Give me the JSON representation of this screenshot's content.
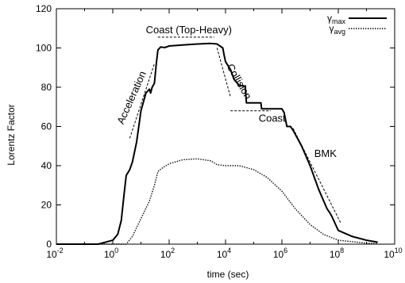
{
  "chart_data": {
    "type": "line",
    "xlabel": "time (sec)",
    "ylabel": "Lorentz Factor",
    "xscale": "log",
    "xlim": [
      0.01,
      10000000000
    ],
    "ylim": [
      0,
      120
    ],
    "x_ticks": [
      {
        "value": 0.01,
        "base": "10",
        "exp": "-2"
      },
      {
        "value": 1,
        "base": "10",
        "exp": "0"
      },
      {
        "value": 100,
        "base": "10",
        "exp": "2"
      },
      {
        "value": 10000,
        "base": "10",
        "exp": "4"
      },
      {
        "value": 1000000,
        "base": "10",
        "exp": "6"
      },
      {
        "value": 100000000,
        "base": "10",
        "exp": "8"
      },
      {
        "value": 10000000000,
        "base": "10",
        "exp": "10"
      }
    ],
    "y_ticks": [
      "0",
      "20",
      "40",
      "60",
      "80",
      "100",
      "120"
    ],
    "grid": false,
    "legend_position": "top-right",
    "series": [
      {
        "name": "γmax",
        "legend_base": "γ",
        "legend_sub": "max",
        "style": "solid",
        "color": "#000000",
        "points": [
          [
            0.01,
            0
          ],
          [
            0.3,
            0
          ],
          [
            1.0,
            2
          ],
          [
            1.5,
            5
          ],
          [
            2.0,
            12
          ],
          [
            2.5,
            25
          ],
          [
            3.0,
            35
          ],
          [
            4.0,
            38
          ],
          [
            5.0,
            42
          ],
          [
            7.0,
            52
          ],
          [
            10,
            68
          ],
          [
            15,
            77
          ],
          [
            20,
            79
          ],
          [
            22,
            77
          ],
          [
            25,
            80
          ],
          [
            30,
            82
          ],
          [
            35,
            92
          ],
          [
            40,
            99
          ],
          [
            50,
            100.5
          ],
          [
            70,
            100.2
          ],
          [
            100,
            101
          ],
          [
            300,
            101.5
          ],
          [
            1000,
            102
          ],
          [
            3000,
            102.3
          ],
          [
            5000,
            102
          ],
          [
            8000,
            100
          ],
          [
            9000,
            96
          ],
          [
            10000,
            93
          ],
          [
            15000,
            89
          ],
          [
            20000,
            84
          ],
          [
            30000,
            81
          ],
          [
            50000,
            80.5
          ],
          [
            55000,
            72
          ],
          [
            180000,
            72
          ],
          [
            190000,
            69
          ],
          [
            1000000,
            69
          ],
          [
            1200000,
            67
          ],
          [
            1500000,
            60
          ],
          [
            2000000,
            60
          ],
          [
            2500000,
            58
          ],
          [
            5000000,
            50
          ],
          [
            10000000,
            40
          ],
          [
            20000000,
            28
          ],
          [
            40000000,
            18
          ],
          [
            50000000,
            16
          ],
          [
            60000000,
            14
          ],
          [
            80000000,
            10
          ],
          [
            100000000,
            7
          ],
          [
            300000000,
            4
          ],
          [
            1000000000,
            2
          ],
          [
            2500000000,
            1
          ]
        ]
      },
      {
        "name": "γavg",
        "legend_base": "γ",
        "legend_sub": "avg",
        "style": "dotted",
        "color": "#000000",
        "points": [
          [
            0.01,
            0
          ],
          [
            3,
            0
          ],
          [
            5,
            4
          ],
          [
            10,
            13
          ],
          [
            20,
            22
          ],
          [
            30,
            30
          ],
          [
            40,
            37
          ],
          [
            60,
            39
          ],
          [
            100,
            41
          ],
          [
            300,
            43
          ],
          [
            1000,
            43.5
          ],
          [
            3000,
            42.5
          ],
          [
            5000,
            40.5
          ],
          [
            10000,
            40
          ],
          [
            30000,
            40
          ],
          [
            100000,
            38
          ],
          [
            300000,
            34
          ],
          [
            1000000,
            27
          ],
          [
            3000000,
            18
          ],
          [
            10000000,
            10
          ],
          [
            30000000,
            5
          ],
          [
            100000000,
            2
          ],
          [
            1000000000,
            0.5
          ],
          [
            2500000000,
            0.3
          ]
        ]
      }
    ],
    "annotations": [
      {
        "text": "Coast (Top-Heavy)",
        "x": 500,
        "y": 107.5,
        "rotate": 0,
        "anchor": "middle"
      },
      {
        "text": "Acceleration",
        "x": 6,
        "y": 74,
        "rotate": -66,
        "anchor": "middle"
      },
      {
        "text": "Collision",
        "x": 24000,
        "y": 82,
        "rotate": 60,
        "anchor": "middle"
      },
      {
        "text": "Coast",
        "x": 450000,
        "y": 62.5,
        "rotate": 0,
        "anchor": "middle"
      },
      {
        "text": "BMK",
        "x": 35000000,
        "y": 44.5,
        "rotate": 0,
        "anchor": "middle"
      }
    ],
    "guide_lines": [
      {
        "name": "coast-guide-line",
        "x1": 40,
        "y1": 105.5,
        "x2": 4000,
        "y2": 105.5
      },
      {
        "name": "acceleration-guide-line",
        "x1": 4,
        "y1": 54,
        "x2": 30,
        "y2": 92
      },
      {
        "name": "collision-guide-line",
        "x1": 5000,
        "y1": 100,
        "x2": 15000,
        "y2": 75
      },
      {
        "name": "collision-guide-line-flat",
        "x1": 15000,
        "y1": 68,
        "x2": 400000,
        "y2": 68
      },
      {
        "name": "bmk-guide-line",
        "x1": 2500000,
        "y1": 59,
        "x2": 120000000,
        "y2": 11
      }
    ]
  }
}
